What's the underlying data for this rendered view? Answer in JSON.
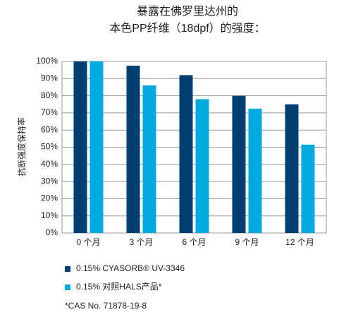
{
  "chart_data": {
    "type": "bar",
    "title": [
      "暴露在佛罗里达州的",
      "本色PP纤维（18dpf）的强度："
    ],
    "y_label": "抗断强度保持率",
    "categories": [
      "0 个月",
      "3 个月",
      "6 个月",
      "9 个月",
      "12 个月"
    ],
    "series": [
      {
        "name": "0.15% CYASORB® UV-3346",
        "color": "#003f72",
        "values": [
          100,
          97.5,
          92,
          80,
          75
        ]
      },
      {
        "name": "0.15% 对照HALS产品*",
        "color": "#00a9e0",
        "values": [
          100,
          86,
          78,
          72.5,
          51.5
        ]
      }
    ],
    "ylim": [
      0,
      100
    ],
    "yticks": [
      {
        "value": 0,
        "label": "0%"
      },
      {
        "value": 10,
        "label": "10%"
      },
      {
        "value": 20,
        "label": "20%"
      },
      {
        "value": 30,
        "label": "30%"
      },
      {
        "value": 40,
        "label": "40%"
      },
      {
        "value": 50,
        "label": "50%"
      },
      {
        "value": 60,
        "label": "60%"
      },
      {
        "value": 70,
        "label": "70%"
      },
      {
        "value": 80,
        "label": "80%"
      },
      {
        "value": 90,
        "label": "90%"
      },
      {
        "value": 100,
        "label": "100%"
      }
    ],
    "grid": true,
    "footnote": "*CAS No. 71878-19-8"
  }
}
